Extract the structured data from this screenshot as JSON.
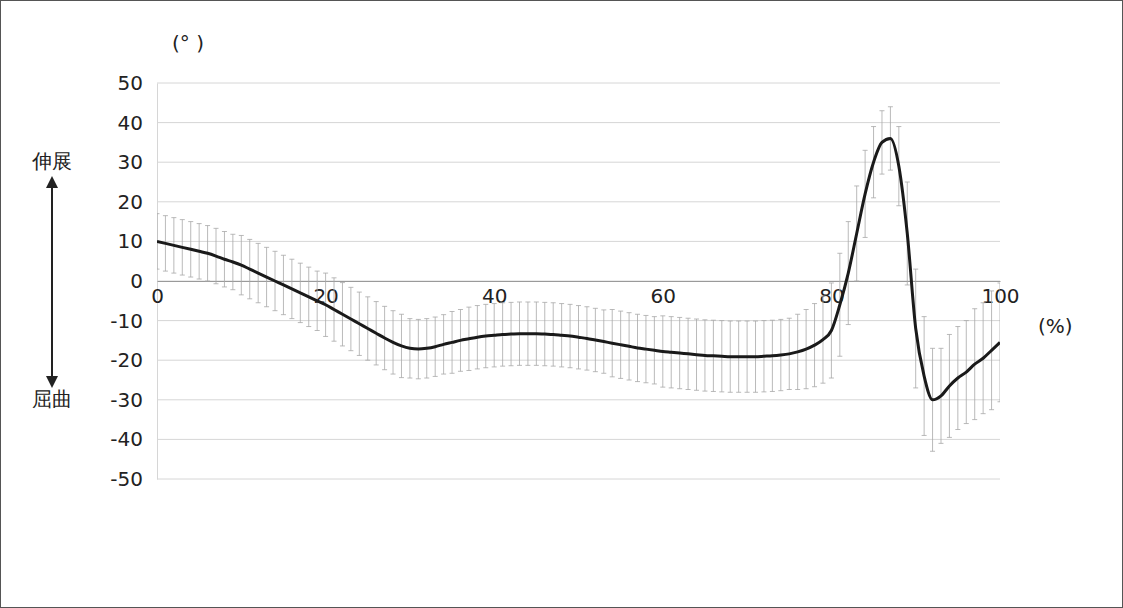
{
  "chart_data": {
    "type": "line",
    "ylabel": "(° )",
    "xlabel": "(%)",
    "annotations": [
      "伸展",
      "屈曲"
    ],
    "color": "#1a1a1a",
    "grid": true,
    "xlim": [
      0,
      100
    ],
    "xticks": [
      0,
      20,
      40,
      60,
      80,
      100
    ],
    "ylim": [
      -50,
      50
    ],
    "yticks": [
      -50,
      -40,
      -30,
      -20,
      -10,
      0,
      10,
      20,
      30,
      40,
      50
    ],
    "x": [
      0,
      1,
      2,
      3,
      4,
      5,
      6,
      7,
      8,
      9,
      10,
      11,
      12,
      13,
      14,
      15,
      16,
      17,
      18,
      19,
      20,
      21,
      22,
      23,
      24,
      25,
      26,
      27,
      28,
      29,
      30,
      31,
      32,
      33,
      34,
      35,
      36,
      37,
      38,
      39,
      40,
      41,
      42,
      43,
      44,
      45,
      46,
      47,
      48,
      49,
      50,
      51,
      52,
      53,
      54,
      55,
      56,
      57,
      58,
      59,
      60,
      61,
      62,
      63,
      64,
      65,
      66,
      67,
      68,
      69,
      70,
      71,
      72,
      73,
      74,
      75,
      76,
      77,
      78,
      79,
      80,
      81,
      82,
      83,
      84,
      85,
      86,
      87,
      88,
      89,
      90,
      91,
      92,
      93,
      94,
      95,
      96,
      97,
      98,
      99,
      100
    ],
    "values": [
      10,
      9.5,
      9,
      8.5,
      8,
      7.5,
      7,
      6.3,
      5.5,
      4.8,
      4,
      3,
      2,
      1,
      0,
      -1,
      -2,
      -3,
      -4,
      -5,
      -6,
      -7.2,
      -8.4,
      -9.6,
      -10.8,
      -12,
      -13.2,
      -14.4,
      -15.5,
      -16.4,
      -17,
      -17.2,
      -17,
      -16.6,
      -16,
      -15.5,
      -15,
      -14.6,
      -14.2,
      -13.9,
      -13.7,
      -13.5,
      -13.4,
      -13.3,
      -13.3,
      -13.3,
      -13.4,
      -13.5,
      -13.7,
      -13.9,
      -14.2,
      -14.5,
      -14.9,
      -15.3,
      -15.7,
      -16.1,
      -16.5,
      -16.9,
      -17.2,
      -17.5,
      -17.8,
      -18,
      -18.2,
      -18.4,
      -18.6,
      -18.8,
      -18.9,
      -19,
      -19.1,
      -19.1,
      -19.1,
      -19.1,
      -19,
      -18.9,
      -18.7,
      -18.4,
      -17.9,
      -17.2,
      -16.2,
      -14.8,
      -12.5,
      -6,
      2,
      12,
      22,
      30,
      35,
      36,
      29,
      12,
      -12,
      -24,
      -30,
      -29,
      -26.5,
      -24.5,
      -23,
      -21,
      -19.5,
      -17.5,
      -15.5
    ],
    "errors": [
      7,
      7,
      7,
      7,
      7,
      7,
      7,
      7,
      7,
      7,
      7.5,
      7.5,
      7.5,
      7.5,
      7.5,
      7.5,
      7.5,
      7.5,
      7.5,
      7.5,
      8,
      8,
      8,
      8,
      8,
      8,
      8,
      8,
      8,
      8,
      7.5,
      7.5,
      7.5,
      7.5,
      7.5,
      7.8,
      7.8,
      8,
      8,
      8,
      8,
      8,
      8,
      8,
      8,
      8,
      8,
      8,
      8,
      8,
      8,
      8,
      8,
      8,
      8.5,
      8.5,
      8.5,
      8.5,
      8.5,
      8.5,
      9,
      9,
      9,
      9,
      9,
      9,
      9,
      9,
      9,
      9,
      9,
      9,
      9,
      9,
      9,
      9,
      9.5,
      10,
      10.5,
      11,
      12,
      13,
      13,
      12,
      11,
      9,
      8,
      8,
      10,
      13,
      15,
      15,
      13,
      12,
      13,
      13,
      13,
      14,
      14,
      15,
      15
    ]
  }
}
